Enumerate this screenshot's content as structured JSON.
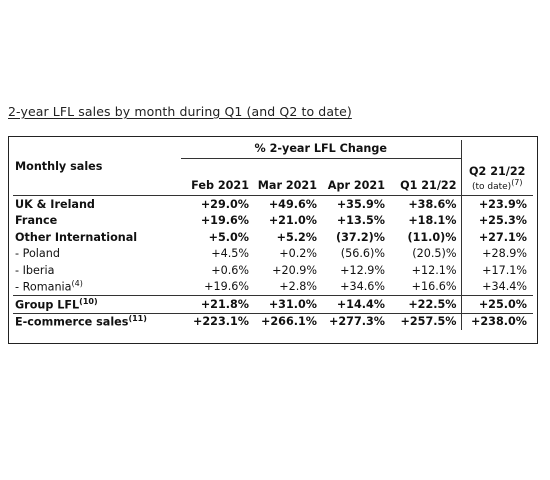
{
  "title": "2-year LFL sales by month during Q1 (and Q2 to date)",
  "table": {
    "group_header": "% 2-year LFL Change",
    "row_header": "Monthly sales",
    "columns": [
      "Feb 2021",
      "Mar 2021",
      "Apr 2021",
      "Q1 21/22"
    ],
    "q2_header": "Q2 21/22",
    "q2_sub": "(to date)",
    "q2_sub_note": "(7)",
    "rows": [
      {
        "label": "UK & Ireland",
        "values": [
          "+29.0%",
          "+49.6%",
          "+35.9%",
          "+38.6%",
          "+23.9%"
        ]
      },
      {
        "label": "France",
        "values": [
          "+19.6%",
          "+21.0%",
          "+13.5%",
          "+18.1%",
          "+25.3%"
        ]
      },
      {
        "label": "Other International",
        "values": [
          "+5.0%",
          "+5.2%",
          "(37.2)%",
          "(11.0)%",
          "+27.1%"
        ]
      },
      {
        "label": "- Poland",
        "values": [
          "+4.5%",
          "+0.2%",
          "(56.6)%",
          "(20.5)%",
          "+28.9%"
        ]
      },
      {
        "label": "- Iberia",
        "values": [
          "+0.6%",
          "+20.9%",
          "+12.9%",
          "+12.1%",
          "+17.1%"
        ]
      },
      {
        "label": "- Romania",
        "note": "(4)",
        "values": [
          "+19.6%",
          "+2.8%",
          "+34.6%",
          "+16.6%",
          "+34.4%"
        ]
      },
      {
        "label": "Group LFL",
        "note": "(10)",
        "values": [
          "+21.8%",
          "+31.0%",
          "+14.4%",
          "+22.5%",
          "+25.0%"
        ]
      },
      {
        "label": "E-commerce sales",
        "note": "(11)",
        "values": [
          "+223.1%",
          "+266.1%",
          "+277.3%",
          "+257.5%",
          "+238.0%"
        ]
      }
    ]
  }
}
